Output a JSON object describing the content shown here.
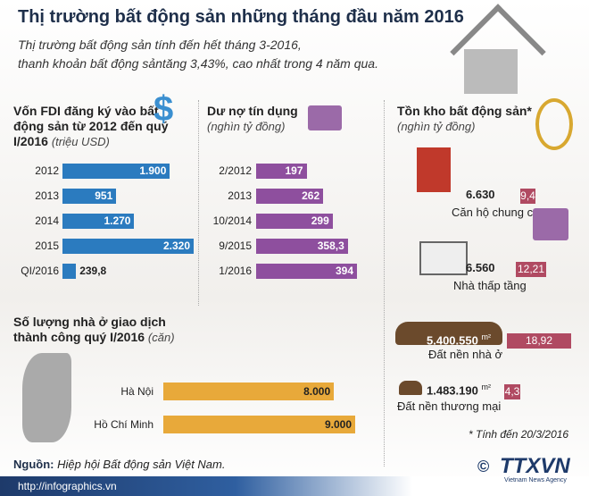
{
  "header": {
    "title": "Thị trường bất động sản những tháng đầu năm 2016",
    "subtitle_lines": [
      "Thị trường bất động sản tính đến hết tháng 3-2016,",
      "thanh khoản bất động sảntăng 3,43%, cao nhất trong 4 năm qua."
    ]
  },
  "chart_data": [
    {
      "type": "bar",
      "orientation": "horizontal",
      "title": "Vốn FDI đăng ký vào bất động sản từ 2012 đến quý I/2016",
      "unit": "(triệu USD)",
      "categories": [
        "2012",
        "2013",
        "2014",
        "2015",
        "QI/2016"
      ],
      "values": [
        1900,
        951,
        1270,
        2320,
        239.8
      ],
      "value_labels": [
        "1.900",
        "951",
        "1.270",
        "2.320",
        "239,8"
      ],
      "color": "#2b7bbf"
    },
    {
      "type": "bar",
      "orientation": "horizontal",
      "title": "Dư nợ tín dụng",
      "unit": "(nghìn tỷ đồng)",
      "categories": [
        "2/2012",
        "2013",
        "10/2014",
        "9/2015",
        "1/2016"
      ],
      "values": [
        197,
        262,
        299,
        358.3,
        394
      ],
      "value_labels": [
        "197",
        "262",
        "299",
        "358,3",
        "394"
      ],
      "color": "#8e4f9e"
    },
    {
      "type": "bar",
      "orientation": "horizontal",
      "title": "Số lượng nhà ở giao dịch thành công quý I/2016",
      "unit": "(căn)",
      "categories": [
        "Hà Nội",
        "Hồ Chí Minh"
      ],
      "values": [
        8000,
        9000
      ],
      "value_labels": [
        "8.000",
        "9.000"
      ],
      "color": "#e8a93a"
    }
  ],
  "inventory": {
    "title": "Tồn kho bất động sản*",
    "unit": "(nghìn tỷ đồng)",
    "note": "* Tính đến 20/3/2016",
    "items": [
      {
        "label": "Căn hộ chung cư",
        "quantity": "6.630",
        "share": "9,4"
      },
      {
        "label": "Nhà thấp tầng",
        "quantity": "6.560",
        "share": "12,21"
      },
      {
        "label": "Đất nền nhà ở",
        "quantity": "5.400.550",
        "quantity_unit": "m²",
        "share": "18,92"
      },
      {
        "label": "Đất nền thương mại",
        "quantity": "1.483.190",
        "quantity_unit": "m²",
        "share": "4,3"
      }
    ]
  },
  "footer": {
    "source_label": "Nguồn:",
    "source": "Hiệp hội Bất động sản Việt Nam.",
    "url": "http://infographics.vn",
    "copyright": "©",
    "logo": "TTXVN",
    "logo_sub": "Vietnam News Agency"
  }
}
